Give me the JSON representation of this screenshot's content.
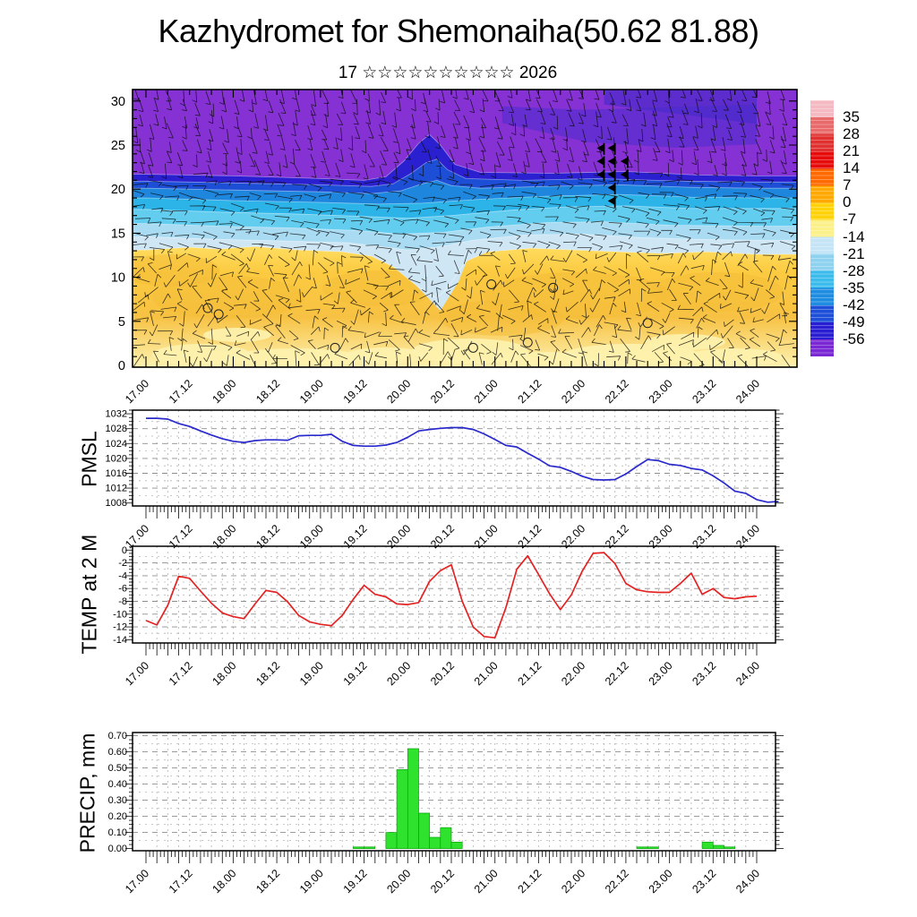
{
  "title": "Kazhydromet for Shemonaiha(50.62 81.88)",
  "subtitle": "17 ☆☆☆☆☆☆☆☆☆☆ 2026",
  "time_labels": [
    "17.00",
    "17.12",
    "18.00",
    "18.12",
    "19.00",
    "19.12",
    "20.00",
    "20.12",
    "21.00",
    "21.12",
    "22.00",
    "22.12",
    "23.00",
    "23.12",
    "24.00"
  ],
  "panel_titles": {
    "pmsl": "PMSL",
    "temp": "TEMP at 2 M",
    "precip": "PRECIP, mm"
  },
  "colorbar": {
    "tick_labels": [
      "35",
      "28",
      "21",
      "14",
      "7",
      "0",
      "-7",
      "-14",
      "-21",
      "-28",
      "-35",
      "-42",
      "-49",
      "-56"
    ],
    "segment_colors": [
      "#f4b9c2",
      "#e86a6a",
      "#e03030",
      "#e60c0c",
      "#ff6a00",
      "#ffa800",
      "#ffd20a",
      "#fcf089",
      "#c5e4f6",
      "#8fd2f0",
      "#3cbcec",
      "#1e8ce0",
      "#1e4fd8",
      "#2a1ed2",
      "#7a27d4"
    ]
  },
  "chart_data": [
    {
      "id": "cross_section",
      "type": "heatmap",
      "description": "time-height temperature cross-section with wind barbs",
      "y_ticks": [
        0,
        5,
        10,
        15,
        20,
        25,
        30
      ],
      "y_range_km": [
        0,
        31.3
      ],
      "x_range_hours": [
        0,
        168
      ],
      "base_color": "#ffd84e",
      "bands": [
        {
          "name": "pale-blue",
          "color": "#cfe6f5",
          "boundary": [
            [
              0,
              13.1
            ],
            [
              12,
              13.4
            ],
            [
              20,
              13.2
            ],
            [
              30,
              13.5
            ],
            [
              42,
              13.1
            ],
            [
              54,
              12.9
            ],
            [
              62,
              12.4
            ],
            [
              68,
              11.2
            ],
            [
              74,
              9.2
            ],
            [
              80,
              7.6
            ],
            [
              83,
              8.8
            ],
            [
              88,
              11.8
            ],
            [
              94,
              12.9
            ],
            [
              106,
              13.3
            ],
            [
              118,
              13.1
            ],
            [
              130,
              12.9
            ],
            [
              142,
              12.7
            ],
            [
              154,
              12.9
            ],
            [
              168,
              12.6
            ]
          ]
        },
        {
          "name": "light-blue",
          "color": "#a9dcf3",
          "boundary": [
            [
              0,
              14.6
            ],
            [
              20,
              14.3
            ],
            [
              40,
              14.1
            ],
            [
              56,
              13.9
            ],
            [
              64,
              13.5
            ],
            [
              72,
              13.1
            ],
            [
              80,
              13.4
            ],
            [
              90,
              14.2
            ],
            [
              104,
              14.8
            ],
            [
              120,
              14.9
            ],
            [
              136,
              14.5
            ],
            [
              152,
              14.3
            ],
            [
              168,
              14.2
            ]
          ]
        },
        {
          "name": "light-cyan",
          "color": "#63cdf0",
          "boundary": [
            [
              0,
              16.1
            ],
            [
              20,
              15.8
            ],
            [
              40,
              15.6
            ],
            [
              58,
              15.3
            ],
            [
              70,
              14.9
            ],
            [
              82,
              15.1
            ],
            [
              94,
              15.7
            ],
            [
              110,
              16.2
            ],
            [
              126,
              16.3
            ],
            [
              144,
              15.9
            ],
            [
              168,
              15.8
            ]
          ]
        },
        {
          "name": "cyan",
          "color": "#2cb4e9",
          "boundary": [
            [
              0,
              17.7
            ],
            [
              20,
              17.4
            ],
            [
              40,
              17.2
            ],
            [
              60,
              16.9
            ],
            [
              72,
              16.7
            ],
            [
              84,
              17.0
            ],
            [
              100,
              17.6
            ],
            [
              116,
              18.0
            ],
            [
              132,
              18.1
            ],
            [
              150,
              17.8
            ],
            [
              168,
              17.8
            ]
          ]
        },
        {
          "name": "blue",
          "color": "#1e86dd",
          "boundary": [
            [
              0,
              19.0
            ],
            [
              24,
              18.7
            ],
            [
              48,
              18.5
            ],
            [
              64,
              18.3
            ],
            [
              76,
              18.4
            ],
            [
              90,
              18.8
            ],
            [
              110,
              19.2
            ],
            [
              130,
              19.4
            ],
            [
              150,
              19.1
            ],
            [
              168,
              19.0
            ]
          ]
        },
        {
          "name": "deep-blue",
          "color": "#1d4ed6",
          "boundary": [
            [
              0,
              20.1
            ],
            [
              24,
              19.9
            ],
            [
              48,
              19.7
            ],
            [
              62,
              19.5
            ],
            [
              70,
              19.8
            ],
            [
              76,
              20.6
            ],
            [
              80,
              21.0
            ],
            [
              84,
              20.4
            ],
            [
              92,
              20.1
            ],
            [
              110,
              20.3
            ],
            [
              130,
              20.5
            ],
            [
              150,
              20.2
            ],
            [
              168,
              20.1
            ]
          ]
        },
        {
          "name": "dark-blue",
          "color": "#2a20cf",
          "boundary": [
            [
              0,
              20.9
            ],
            [
              24,
              20.7
            ],
            [
              48,
              20.5
            ],
            [
              62,
              20.3
            ],
            [
              68,
              20.6
            ],
            [
              73,
              21.8
            ],
            [
              77,
              23.0
            ],
            [
              80,
              23.4
            ],
            [
              83,
              22.2
            ],
            [
              88,
              21.2
            ],
            [
              104,
              21.0
            ],
            [
              124,
              21.2
            ],
            [
              148,
              20.9
            ],
            [
              168,
              20.8
            ]
          ]
        },
        {
          "name": "purple",
          "color": "#8631d3",
          "boundary": [
            [
              0,
              21.7
            ],
            [
              24,
              21.5
            ],
            [
              48,
              21.2
            ],
            [
              60,
              21.0
            ],
            [
              66,
              21.4
            ],
            [
              71,
              23.2
            ],
            [
              75,
              25.2
            ],
            [
              78,
              26.2
            ],
            [
              81,
              25.0
            ],
            [
              85,
              22.8
            ],
            [
              92,
              21.9
            ],
            [
              112,
              21.8
            ],
            [
              132,
              22.0
            ],
            [
              152,
              21.6
            ],
            [
              168,
              21.5
            ]
          ]
        }
      ],
      "cold_tongue": {
        "color": "#cfe6f5",
        "points": [
          [
            68,
            12.6
          ],
          [
            74,
            9.2
          ],
          [
            81,
            6.2
          ],
          [
            86,
            9.5
          ],
          [
            89,
            12.6
          ]
        ]
      },
      "dark_swaths": [
        {
          "color": "#5b2ed0",
          "opacity": 0.8,
          "points": [
            [
              98,
              27.5
            ],
            [
              122,
              25.3
            ],
            [
              146,
              24.7
            ],
            [
              168,
              25.1
            ],
            [
              168,
              29.6
            ],
            [
              120,
              29.0
            ],
            [
              98,
              29.4
            ]
          ]
        },
        {
          "color": "#4629c8",
          "opacity": 0.65,
          "points": [
            [
              126,
              29.6
            ],
            [
              168,
              27.4
            ],
            [
              168,
              31.3
            ],
            [
              126,
              31.3
            ]
          ]
        }
      ],
      "arrow_flags": [
        [
          126,
          23.9
        ],
        [
          129,
          23.9
        ],
        [
          126,
          22.4
        ],
        [
          129,
          22.4
        ],
        [
          132.5,
          22.4
        ],
        [
          126,
          20.9
        ],
        [
          129,
          20.9
        ],
        [
          132.5,
          20.9
        ],
        [
          129,
          19.4
        ],
        [
          129,
          17.9
        ]
      ],
      "calm_circles": [
        [
          17,
          6.5
        ],
        [
          20,
          5.8
        ],
        [
          52,
          2.0
        ],
        [
          95,
          9.2
        ],
        [
          112,
          8.8
        ],
        [
          90,
          2.0
        ],
        [
          105,
          2.6
        ],
        [
          138,
          4.8
        ]
      ]
    },
    {
      "id": "pmsl",
      "type": "line",
      "title": "PMSL",
      "color": "#2929cc",
      "y_tick_labels": [
        "1032",
        "1028",
        "1024",
        "1020",
        "1016",
        "1012",
        "1008"
      ],
      "ylim": [
        1007.2,
        1033.0
      ],
      "hours_step": 3,
      "values": [
        1030.8,
        1030.8,
        1030.6,
        1029.4,
        1028.6,
        1027.4,
        1026.3,
        1025.3,
        1024.6,
        1024.3,
        1024.8,
        1025.0,
        1025.0,
        1024.9,
        1026.1,
        1026.2,
        1026.2,
        1026.5,
        1024.6,
        1023.5,
        1023.3,
        1023.3,
        1023.6,
        1024.3,
        1025.7,
        1027.4,
        1027.8,
        1028.1,
        1028.3,
        1028.3,
        1027.8,
        1026.6,
        1025.1,
        1023.5,
        1023.1,
        1021.4,
        1019.8,
        1018.0,
        1017.6,
        1016.5,
        1015.2,
        1014.3,
        1014.2,
        1014.3,
        1015.8,
        1017.8,
        1019.7,
        1019.4,
        1018.4,
        1018.1,
        1017.3,
        1016.9,
        1015.3,
        1013.4,
        1011.2,
        1010.6,
        1008.9,
        1008.2,
        1008.4
      ]
    },
    {
      "id": "temp",
      "type": "line",
      "title": "TEMP at 2 M",
      "color": "#e32222",
      "y_tick_labels": [
        "0",
        "-2",
        "-4",
        "-6",
        "-8",
        "-10",
        "-12",
        "-14"
      ],
      "ylim": [
        -14.5,
        0.6
      ],
      "hours_step": 3,
      "values": [
        -11.0,
        -11.7,
        -8.6,
        -4.1,
        -4.4,
        -6.4,
        -8.3,
        -9.8,
        -10.4,
        -10.7,
        -8.4,
        -6.3,
        -6.6,
        -8.1,
        -10.2,
        -11.2,
        -11.6,
        -11.8,
        -10.2,
        -7.7,
        -5.5,
        -6.9,
        -7.3,
        -8.4,
        -8.5,
        -8.2,
        -4.9,
        -3.2,
        -2.3,
        -8.0,
        -12.0,
        -13.5,
        -13.7,
        -9.0,
        -3.0,
        -0.9,
        -3.8,
        -6.8,
        -9.3,
        -7.0,
        -3.3,
        -0.5,
        -0.4,
        -2.1,
        -5.2,
        -6.2,
        -6.5,
        -6.6,
        -6.6,
        -5.2,
        -3.6,
        -6.9,
        -6.0,
        -7.4,
        -7.6,
        -7.3,
        -7.2
      ]
    },
    {
      "id": "precip",
      "type": "bar",
      "title": "PRECIP, mm",
      "color": "#2ee22e",
      "y_tick_labels": [
        "0.70",
        "0.60",
        "0.50",
        "0.40",
        "0.30",
        "0.20",
        "0.10",
        "0.00"
      ],
      "ylim": [
        0.0,
        0.72
      ],
      "bin_hours": 3,
      "bars": [
        {
          "t": 57,
          "v": 0.01
        },
        {
          "t": 60,
          "v": 0.01
        },
        {
          "t": 66,
          "v": 0.1
        },
        {
          "t": 69,
          "v": 0.49
        },
        {
          "t": 72,
          "v": 0.62
        },
        {
          "t": 75,
          "v": 0.22
        },
        {
          "t": 78,
          "v": 0.07
        },
        {
          "t": 81,
          "v": 0.13
        },
        {
          "t": 84,
          "v": 0.04
        },
        {
          "t": 135,
          "v": 0.01
        },
        {
          "t": 138,
          "v": 0.01
        },
        {
          "t": 153,
          "v": 0.04
        },
        {
          "t": 156,
          "v": 0.02
        },
        {
          "t": 159,
          "v": 0.01
        }
      ]
    }
  ]
}
